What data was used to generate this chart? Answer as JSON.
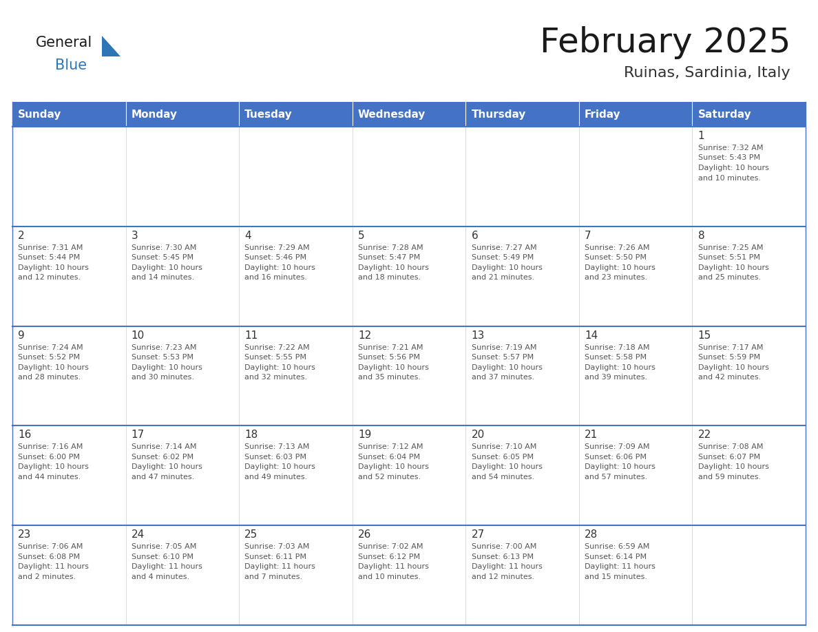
{
  "title": "February 2025",
  "subtitle": "Ruinas, Sardinia, Italy",
  "days_of_week": [
    "Sunday",
    "Monday",
    "Tuesday",
    "Wednesday",
    "Thursday",
    "Friday",
    "Saturday"
  ],
  "header_bg": "#4472C4",
  "header_text": "#FFFFFF",
  "cell_bg": "#FFFFFF",
  "row_divider_color": "#4472C4",
  "title_color": "#1a1a1a",
  "subtitle_color": "#333333",
  "day_number_color": "#333333",
  "info_color": "#555555",
  "logo_general_color": "#1a1a1a",
  "logo_blue_color": "#2E75B6",
  "logo_triangle_color": "#2E75B6",
  "calendar": [
    [
      null,
      null,
      null,
      null,
      null,
      null,
      {
        "day": 1,
        "sunrise": "7:32 AM",
        "sunset": "5:43 PM",
        "daylight": "10 hours",
        "daylight2": "and 10 minutes."
      }
    ],
    [
      {
        "day": 2,
        "sunrise": "7:31 AM",
        "sunset": "5:44 PM",
        "daylight": "10 hours",
        "daylight2": "and 12 minutes."
      },
      {
        "day": 3,
        "sunrise": "7:30 AM",
        "sunset": "5:45 PM",
        "daylight": "10 hours",
        "daylight2": "and 14 minutes."
      },
      {
        "day": 4,
        "sunrise": "7:29 AM",
        "sunset": "5:46 PM",
        "daylight": "10 hours",
        "daylight2": "and 16 minutes."
      },
      {
        "day": 5,
        "sunrise": "7:28 AM",
        "sunset": "5:47 PM",
        "daylight": "10 hours",
        "daylight2": "and 18 minutes."
      },
      {
        "day": 6,
        "sunrise": "7:27 AM",
        "sunset": "5:49 PM",
        "daylight": "10 hours",
        "daylight2": "and 21 minutes."
      },
      {
        "day": 7,
        "sunrise": "7:26 AM",
        "sunset": "5:50 PM",
        "daylight": "10 hours",
        "daylight2": "and 23 minutes."
      },
      {
        "day": 8,
        "sunrise": "7:25 AM",
        "sunset": "5:51 PM",
        "daylight": "10 hours",
        "daylight2": "and 25 minutes."
      }
    ],
    [
      {
        "day": 9,
        "sunrise": "7:24 AM",
        "sunset": "5:52 PM",
        "daylight": "10 hours",
        "daylight2": "and 28 minutes."
      },
      {
        "day": 10,
        "sunrise": "7:23 AM",
        "sunset": "5:53 PM",
        "daylight": "10 hours",
        "daylight2": "and 30 minutes."
      },
      {
        "day": 11,
        "sunrise": "7:22 AM",
        "sunset": "5:55 PM",
        "daylight": "10 hours",
        "daylight2": "and 32 minutes."
      },
      {
        "day": 12,
        "sunrise": "7:21 AM",
        "sunset": "5:56 PM",
        "daylight": "10 hours",
        "daylight2": "and 35 minutes."
      },
      {
        "day": 13,
        "sunrise": "7:19 AM",
        "sunset": "5:57 PM",
        "daylight": "10 hours",
        "daylight2": "and 37 minutes."
      },
      {
        "day": 14,
        "sunrise": "7:18 AM",
        "sunset": "5:58 PM",
        "daylight": "10 hours",
        "daylight2": "and 39 minutes."
      },
      {
        "day": 15,
        "sunrise": "7:17 AM",
        "sunset": "5:59 PM",
        "daylight": "10 hours",
        "daylight2": "and 42 minutes."
      }
    ],
    [
      {
        "day": 16,
        "sunrise": "7:16 AM",
        "sunset": "6:00 PM",
        "daylight": "10 hours",
        "daylight2": "and 44 minutes."
      },
      {
        "day": 17,
        "sunrise": "7:14 AM",
        "sunset": "6:02 PM",
        "daylight": "10 hours",
        "daylight2": "and 47 minutes."
      },
      {
        "day": 18,
        "sunrise": "7:13 AM",
        "sunset": "6:03 PM",
        "daylight": "10 hours",
        "daylight2": "and 49 minutes."
      },
      {
        "day": 19,
        "sunrise": "7:12 AM",
        "sunset": "6:04 PM",
        "daylight": "10 hours",
        "daylight2": "and 52 minutes."
      },
      {
        "day": 20,
        "sunrise": "7:10 AM",
        "sunset": "6:05 PM",
        "daylight": "10 hours",
        "daylight2": "and 54 minutes."
      },
      {
        "day": 21,
        "sunrise": "7:09 AM",
        "sunset": "6:06 PM",
        "daylight": "10 hours",
        "daylight2": "and 57 minutes."
      },
      {
        "day": 22,
        "sunrise": "7:08 AM",
        "sunset": "6:07 PM",
        "daylight": "10 hours",
        "daylight2": "and 59 minutes."
      }
    ],
    [
      {
        "day": 23,
        "sunrise": "7:06 AM",
        "sunset": "6:08 PM",
        "daylight": "11 hours",
        "daylight2": "and 2 minutes."
      },
      {
        "day": 24,
        "sunrise": "7:05 AM",
        "sunset": "6:10 PM",
        "daylight": "11 hours",
        "daylight2": "and 4 minutes."
      },
      {
        "day": 25,
        "sunrise": "7:03 AM",
        "sunset": "6:11 PM",
        "daylight": "11 hours",
        "daylight2": "and 7 minutes."
      },
      {
        "day": 26,
        "sunrise": "7:02 AM",
        "sunset": "6:12 PM",
        "daylight": "11 hours",
        "daylight2": "and 10 minutes."
      },
      {
        "day": 27,
        "sunrise": "7:00 AM",
        "sunset": "6:13 PM",
        "daylight": "11 hours",
        "daylight2": "and 12 minutes."
      },
      {
        "day": 28,
        "sunrise": "6:59 AM",
        "sunset": "6:14 PM",
        "daylight": "11 hours",
        "daylight2": "and 15 minutes."
      },
      null
    ]
  ]
}
